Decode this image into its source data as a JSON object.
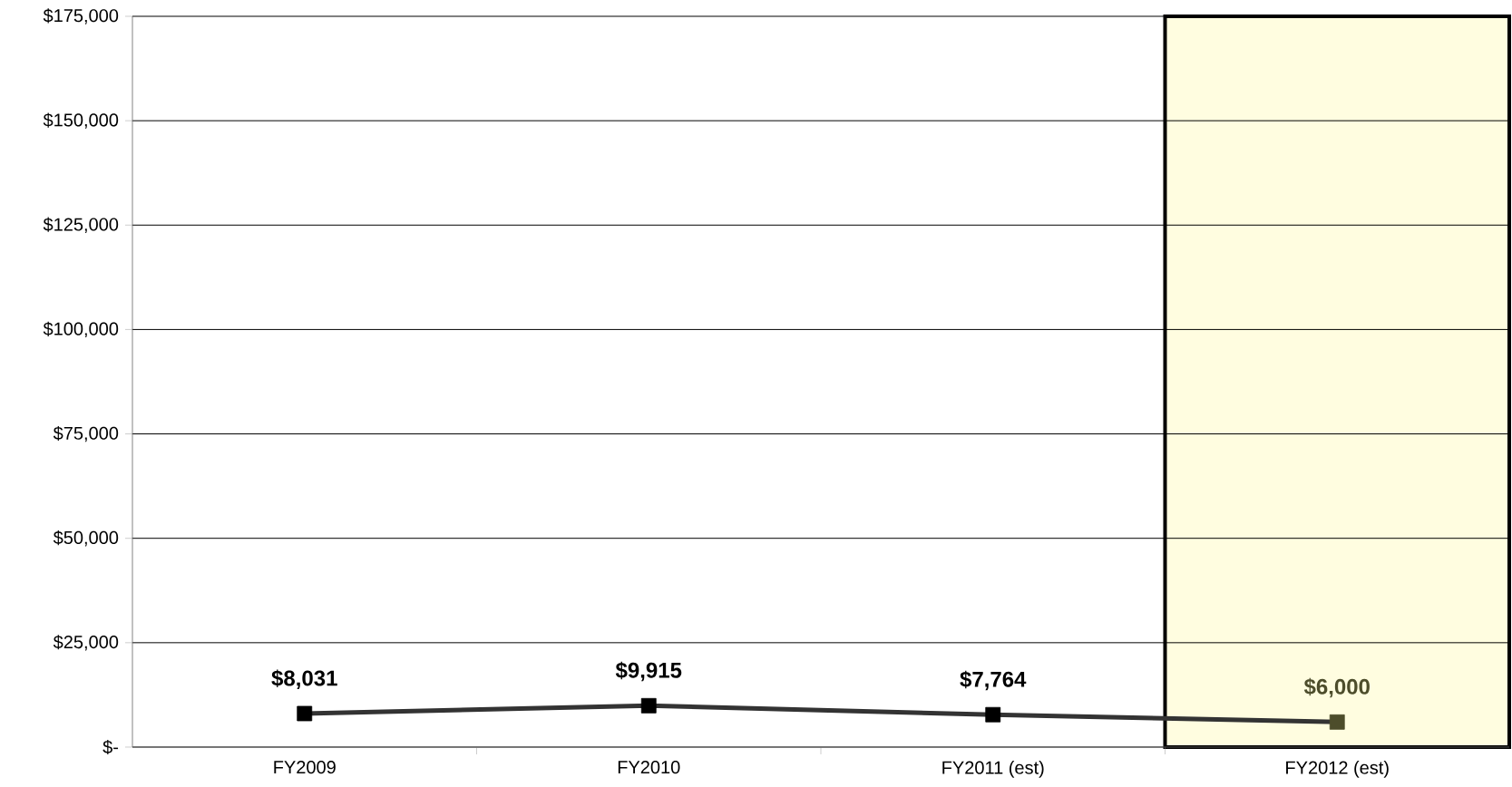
{
  "chart_data": {
    "type": "line",
    "categories": [
      "FY2009",
      "FY2010",
      "FY2011 (est)",
      "FY2012 (est)"
    ],
    "series": [
      {
        "color": "#333333",
        "colors": [
          "#000000",
          "#000000",
          "#000000",
          "#4d4d2b"
        ],
        "values": [
          8031,
          9915,
          7764,
          6000
        ],
        "value_labels": [
          "$8,031",
          "$9,915",
          "$7,764",
          "$6,000"
        ]
      }
    ],
    "ylim": [
      0,
      175000
    ],
    "yticks": [
      {
        "value": 0,
        "label": "$-"
      },
      {
        "value": 25000,
        "label": "$25,000"
      },
      {
        "value": 50000,
        "label": "$50,000"
      },
      {
        "value": 75000,
        "label": "$75,000"
      },
      {
        "value": 100000,
        "label": "$100,000"
      },
      {
        "value": 125000,
        "label": "$125,000"
      },
      {
        "value": 150000,
        "label": "$150,000"
      },
      {
        "value": 175000,
        "label": "$175,000"
      }
    ],
    "bands": [
      {
        "axis": "x",
        "from": "FY2012 (est)",
        "to": "FY2012 (est)",
        "color": "#fffde0"
      }
    ],
    "grid": "y",
    "marker": "square",
    "line_style": "solid"
  }
}
